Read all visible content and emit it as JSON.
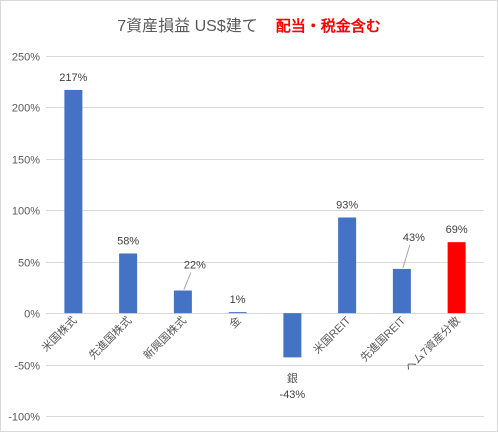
{
  "title": {
    "main": "7資産損益 US$建て",
    "note": "配当・税金含む"
  },
  "colors": {
    "bar": "#4472c4",
    "highlight": "#ff0000",
    "grid": "#d9d9d9",
    "text": "#595959",
    "label": "#404040"
  },
  "chart_data": {
    "type": "bar",
    "title": "7資産損益 US$建て 配当・税金含む",
    "categories": [
      "米国株式",
      "先進国株式",
      "新興国株式",
      "金",
      "銀",
      "米国REIT",
      "先進国REIT",
      "ヘム7資産分散"
    ],
    "values": [
      2.17,
      0.58,
      0.22,
      0.01,
      -0.43,
      0.93,
      0.43,
      0.69
    ],
    "data_labels": [
      "217%",
      "58%",
      "22%",
      "1%",
      "-43%",
      "93%",
      "43%",
      "69%"
    ],
    "highlight_index": 7,
    "ylim": [
      -1.0,
      2.5
    ],
    "yticks": [
      "250%",
      "200%",
      "150%",
      "100%",
      "50%",
      "0%",
      "-50%",
      "-100%"
    ],
    "ytick_values": [
      2.5,
      2.0,
      1.5,
      1.0,
      0.5,
      0.0,
      -0.5,
      -1.0
    ],
    "grid": true,
    "legend": "none",
    "xlabel": "",
    "ylabel": ""
  }
}
